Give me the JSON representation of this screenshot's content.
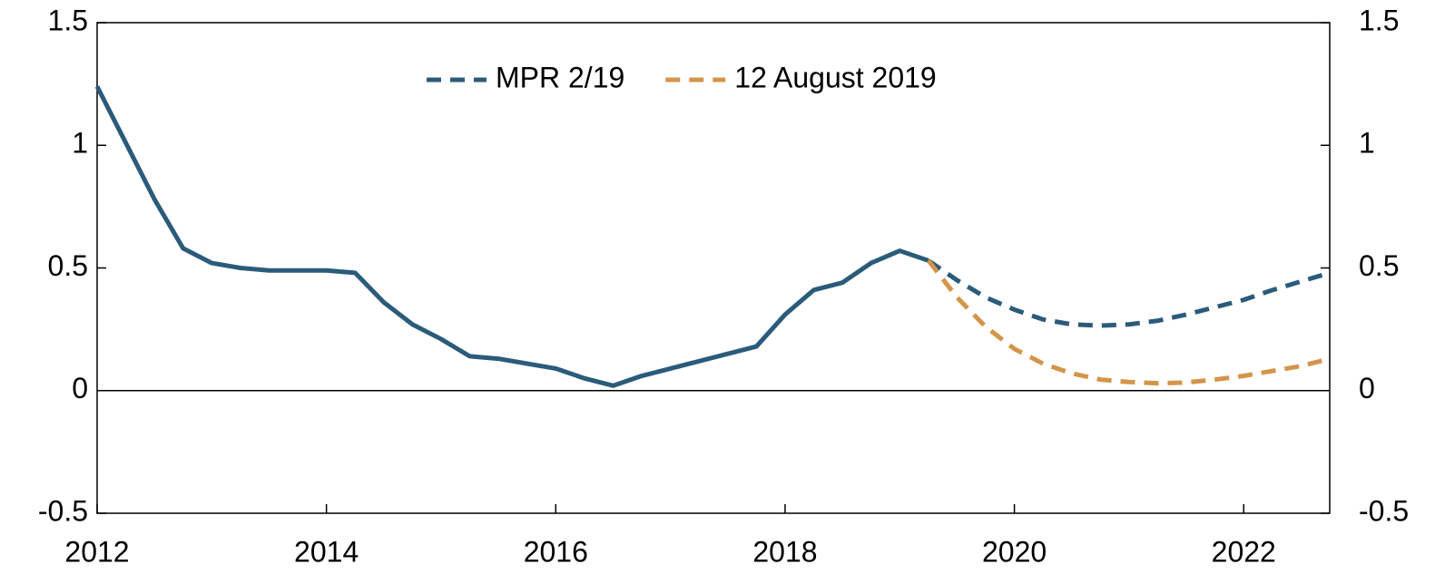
{
  "chart_data": {
    "type": "line",
    "xlim": [
      2012,
      2022.75
    ],
    "xticks": [
      2012,
      2014,
      2016,
      2018,
      2020,
      2022
    ],
    "ylim": [
      -0.5,
      1.5
    ],
    "yticks": [
      -0.5,
      0,
      0.5,
      1,
      1.5
    ],
    "y2lim": [
      -0.5,
      1.5
    ],
    "y2ticks": [
      -0.5,
      0,
      0.5,
      1,
      1.5
    ],
    "legend": "top",
    "series": [
      {
        "color": "#2b5b7a",
        "dash": false,
        "x": [
          2012,
          2012.25,
          2012.5,
          2012.75,
          2013,
          2013.25,
          2013.5,
          2013.75,
          2014,
          2014.25,
          2014.5,
          2014.75,
          2015,
          2015.25,
          2015.5,
          2015.75,
          2016,
          2016.25,
          2016.5,
          2016.75,
          2017,
          2017.25,
          2017.5,
          2017.75,
          2018,
          2018.25,
          2018.5,
          2018.75,
          2019,
          2019.25
        ],
        "values": [
          1.24,
          1.01,
          0.78,
          0.58,
          0.52,
          0.5,
          0.49,
          0.49,
          0.49,
          0.48,
          0.36,
          0.27,
          0.21,
          0.14,
          0.13,
          0.11,
          0.09,
          0.05,
          0.02,
          0.06,
          0.09,
          0.12,
          0.15,
          0.18,
          0.31,
          0.41,
          0.44,
          0.52,
          0.57,
          0.53
        ]
      },
      {
        "name": "MPR 2/19",
        "color": "#2b5b7a",
        "dash": true,
        "x": [
          2019.25,
          2019.5,
          2019.75,
          2020,
          2020.25,
          2020.5,
          2020.75,
          2021,
          2021.25,
          2021.5,
          2021.75,
          2022,
          2022.25,
          2022.5,
          2022.75
        ],
        "values": [
          0.53,
          0.45,
          0.38,
          0.33,
          0.29,
          0.27,
          0.265,
          0.27,
          0.285,
          0.31,
          0.34,
          0.37,
          0.41,
          0.445,
          0.48
        ]
      },
      {
        "name": "12 August 2019",
        "color": "#d4954a",
        "dash": true,
        "x": [
          2019.25,
          2019.5,
          2019.75,
          2020,
          2020.25,
          2020.5,
          2020.75,
          2021,
          2021.25,
          2021.5,
          2021.75,
          2022,
          2022.25,
          2022.5,
          2022.75
        ],
        "values": [
          0.53,
          0.38,
          0.26,
          0.17,
          0.11,
          0.07,
          0.045,
          0.035,
          0.03,
          0.033,
          0.045,
          0.06,
          0.08,
          0.1,
          0.13
        ]
      }
    ]
  }
}
